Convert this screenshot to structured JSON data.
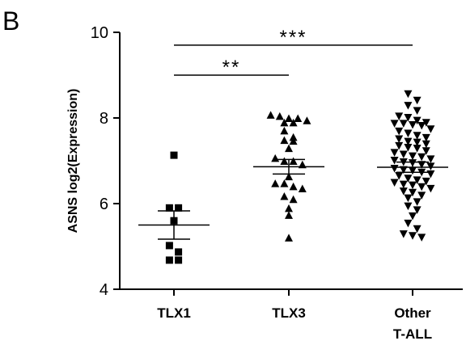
{
  "panel_label": "B",
  "chart_data": {
    "type": "scatter",
    "title": "",
    "xlabel": "",
    "ylabel": "ASNS log2(Expression)",
    "ylim": [
      4,
      10
    ],
    "yticks": [
      4,
      6,
      8,
      10
    ],
    "grid": false,
    "categories": [
      "TLX1",
      "TLX3",
      "Other\nT-ALL"
    ],
    "category_labels": [
      [
        "TLX1"
      ],
      [
        "TLX3"
      ],
      [
        "Other",
        "T-ALL"
      ]
    ],
    "series": [
      {
        "category": "TLX1",
        "marker": "square",
        "values": [
          7.13,
          5.9,
          5.9,
          5.6,
          5.02,
          4.87,
          4.68,
          4.68
        ],
        "mean": 5.5,
        "sem": [
          5.17,
          5.83
        ]
      },
      {
        "category": "TLX3",
        "marker": "triangle-up",
        "values": [
          8.06,
          8.03,
          7.98,
          7.98,
          7.93,
          7.88,
          7.88,
          7.69,
          7.54,
          7.47,
          7.45,
          7.28,
          7.05,
          6.98,
          6.98,
          6.9,
          6.62,
          6.46,
          6.46,
          6.39,
          6.34,
          6.16,
          6.09,
          5.88,
          5.72,
          5.19
        ],
        "mean": 6.86,
        "sem": [
          6.69,
          7.03
        ]
      },
      {
        "category": "Other\nT-ALL",
        "marker": "triangle-down",
        "values": [
          8.57,
          8.42,
          8.3,
          8.18,
          8.05,
          8.02,
          7.95,
          7.9,
          7.88,
          7.88,
          7.85,
          7.83,
          7.75,
          7.7,
          7.65,
          7.6,
          7.55,
          7.52,
          7.46,
          7.44,
          7.4,
          7.36,
          7.32,
          7.3,
          7.24,
          7.2,
          7.16,
          7.12,
          7.1,
          7.05,
          7.02,
          6.98,
          6.96,
          6.92,
          6.88,
          6.83,
          6.8,
          6.78,
          6.74,
          6.7,
          6.66,
          6.6,
          6.56,
          6.53,
          6.5,
          6.46,
          6.44,
          6.4,
          6.36,
          6.3,
          6.27,
          6.2,
          6.14,
          6.05,
          5.95,
          5.86,
          5.72,
          5.55,
          5.42,
          5.3,
          5.26,
          5.22
        ],
        "mean": 6.85,
        "sem": [
          6.73,
          6.97
        ]
      }
    ],
    "annotations": [
      {
        "from": "TLX1",
        "to": "TLX3",
        "y": 9.0,
        "label": "**"
      },
      {
        "from": "TLX1",
        "to": "Other\nT-ALL",
        "y": 9.7,
        "label": "***"
      }
    ]
  }
}
